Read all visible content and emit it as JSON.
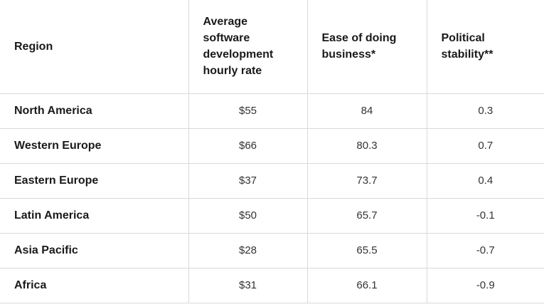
{
  "table": {
    "header": [
      "Region",
      "Average software development hourly rate",
      "Ease of doing business*",
      "Political stability**"
    ],
    "rows": [
      [
        "North America",
        "$55",
        "84",
        "0.3"
      ],
      [
        "Western Europe",
        "$66",
        "80.3",
        "0.7"
      ],
      [
        "Eastern Europe",
        "$37",
        "73.7",
        "0.4"
      ],
      [
        "Latin America",
        "$50",
        "65.7",
        "-0.1"
      ],
      [
        "Asia Pacific",
        "$28",
        "65.5",
        "-0.7"
      ],
      [
        "Africa",
        "$31",
        "66.1",
        "-0.9"
      ]
    ]
  }
}
